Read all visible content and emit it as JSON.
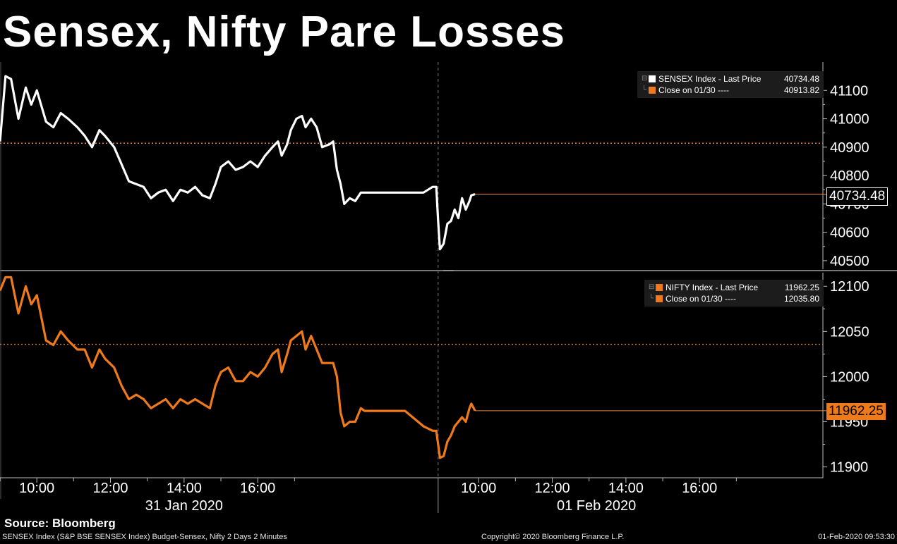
{
  "title": "Sensex, Nifty Pare Losses",
  "source": "Source: Bloomberg",
  "footer": {
    "description": "SENSEX Index (S&P BSE SENSEX Index) Budget-Sensex, Nifty 2 Days 2 Minutes",
    "copyright": "Copyright© 2020 Bloomberg Finance L.P.",
    "timestamp": "01-Feb-2020 09:53:30"
  },
  "colors": {
    "sensex": "#ffffff",
    "nifty": "#f07a1a",
    "close_line": "#e8833a",
    "background": "#000000"
  },
  "chart_data": [
    {
      "type": "line",
      "panel": "top",
      "ylim": [
        40470,
        41200
      ],
      "yticks": [
        41100,
        41000,
        40900,
        40800,
        40700,
        40600,
        40500
      ],
      "legend": {
        "last_label": "SENSEX Index - Last Price",
        "last_value": "40734.48",
        "close_label": "Close on 01/30 ----",
        "close_value": "40913.82"
      },
      "close_ref": 40913.82,
      "last_price": 40734.48,
      "last_price_label": "40734.48",
      "series": [
        {
          "name": "SENSEX Index - Last Price",
          "points": [
            [
              0.0,
              40920
            ],
            [
              0.15,
              41150
            ],
            [
              0.3,
              41140
            ],
            [
              0.5,
              41000
            ],
            [
              0.7,
              41110
            ],
            [
              0.85,
              41050
            ],
            [
              1.0,
              41100
            ],
            [
              1.25,
              40990
            ],
            [
              1.45,
              40970
            ],
            [
              1.65,
              41020
            ],
            [
              1.85,
              41000
            ],
            [
              2.1,
              40970
            ],
            [
              2.3,
              40940
            ],
            [
              2.5,
              40900
            ],
            [
              2.7,
              40960
            ],
            [
              2.85,
              40940
            ],
            [
              3.1,
              40900
            ],
            [
              3.3,
              40840
            ],
            [
              3.5,
              40780
            ],
            [
              3.7,
              40770
            ],
            [
              3.9,
              40760
            ],
            [
              4.1,
              40720
            ],
            [
              4.3,
              40740
            ],
            [
              4.5,
              40750
            ],
            [
              4.7,
              40710
            ],
            [
              4.9,
              40750
            ],
            [
              5.1,
              40740
            ],
            [
              5.3,
              40760
            ],
            [
              5.5,
              40730
            ],
            [
              5.7,
              40720
            ],
            [
              5.85,
              40770
            ],
            [
              6.0,
              40830
            ],
            [
              6.2,
              40850
            ],
            [
              6.4,
              40820
            ],
            [
              6.6,
              40830
            ],
            [
              6.8,
              40850
            ],
            [
              7.0,
              40830
            ],
            [
              7.2,
              40870
            ],
            [
              7.4,
              40900
            ],
            [
              7.55,
              40920
            ],
            [
              7.65,
              40870
            ],
            [
              7.8,
              40910
            ],
            [
              7.9,
              40960
            ],
            [
              8.05,
              41000
            ],
            [
              8.2,
              41010
            ],
            [
              8.3,
              40970
            ],
            [
              8.45,
              41000
            ],
            [
              8.6,
              40970
            ],
            [
              8.75,
              40900
            ],
            [
              8.95,
              40910
            ],
            [
              9.05,
              40920
            ],
            [
              9.15,
              40820
            ],
            [
              9.25,
              40770
            ],
            [
              9.35,
              40700
            ],
            [
              9.5,
              40720
            ],
            [
              9.65,
              40710
            ],
            [
              9.8,
              40740
            ],
            [
              9.9,
              40740
            ],
            [
              11.5,
              40740
            ],
            [
              11.75,
              40760
            ],
            [
              11.85,
              40760
            ],
            [
              11.9,
              40640
            ],
            [
              11.95,
              40540
            ],
            [
              12.05,
              40560
            ],
            [
              12.15,
              40630
            ],
            [
              12.25,
              40640
            ],
            [
              12.35,
              40680
            ],
            [
              12.45,
              40650
            ],
            [
              12.55,
              40720
            ],
            [
              12.65,
              40680
            ],
            [
              12.75,
              40710
            ],
            [
              12.8,
              40730
            ],
            [
              12.9,
              40734.48
            ]
          ]
        }
      ]
    },
    {
      "type": "line",
      "panel": "bottom",
      "ylim": [
        11888,
        12115
      ],
      "yticks": [
        12100,
        12050,
        12000,
        11950,
        11900
      ],
      "legend": {
        "last_label": "NIFTY Index - Last Price",
        "last_value": "11962.25",
        "close_label": "Close on 01/30 ----",
        "close_value": "12035.80"
      },
      "close_ref": 12035.8,
      "last_price": 11962.25,
      "last_price_label": "11962.25",
      "series": [
        {
          "name": "NIFTY Index - Last Price",
          "points": [
            [
              0.0,
              12095
            ],
            [
              0.15,
              12110
            ],
            [
              0.3,
              12110
            ],
            [
              0.5,
              12070
            ],
            [
              0.7,
              12100
            ],
            [
              0.85,
              12080
            ],
            [
              1.0,
              12090
            ],
            [
              1.25,
              12040
            ],
            [
              1.45,
              12035
            ],
            [
              1.65,
              12050
            ],
            [
              1.85,
              12040
            ],
            [
              2.1,
              12030
            ],
            [
              2.3,
              12030
            ],
            [
              2.5,
              12010
            ],
            [
              2.7,
              12030
            ],
            [
              2.85,
              12020
            ],
            [
              3.1,
              12010
            ],
            [
              3.3,
              11990
            ],
            [
              3.5,
              11975
            ],
            [
              3.7,
              11980
            ],
            [
              3.9,
              11975
            ],
            [
              4.1,
              11965
            ],
            [
              4.3,
              11970
            ],
            [
              4.5,
              11975
            ],
            [
              4.7,
              11965
            ],
            [
              4.9,
              11975
            ],
            [
              5.1,
              11970
            ],
            [
              5.3,
              11975
            ],
            [
              5.5,
              11970
            ],
            [
              5.7,
              11965
            ],
            [
              5.85,
              11990
            ],
            [
              6.0,
              12005
            ],
            [
              6.2,
              12010
            ],
            [
              6.4,
              11995
            ],
            [
              6.6,
              11995
            ],
            [
              6.8,
              12005
            ],
            [
              7.0,
              12000
            ],
            [
              7.2,
              12010
            ],
            [
              7.4,
              12025
            ],
            [
              7.55,
              12030
            ],
            [
              7.65,
              12005
            ],
            [
              7.8,
              12025
            ],
            [
              7.9,
              12040
            ],
            [
              8.05,
              12045
            ],
            [
              8.2,
              12050
            ],
            [
              8.3,
              12030
            ],
            [
              8.45,
              12045
            ],
            [
              8.6,
              12030
            ],
            [
              8.75,
              12015
            ],
            [
              8.95,
              12015
            ],
            [
              9.05,
              12015
            ],
            [
              9.15,
              12000
            ],
            [
              9.25,
              11960
            ],
            [
              9.35,
              11945
            ],
            [
              9.5,
              11950
            ],
            [
              9.65,
              11950
            ],
            [
              9.8,
              11965
            ],
            [
              9.9,
              11962
            ],
            [
              11.0,
              11962
            ],
            [
              11.5,
              11945
            ],
            [
              11.75,
              11940
            ],
            [
              11.85,
              11940
            ],
            [
              11.9,
              11925
            ],
            [
              11.95,
              11910
            ],
            [
              12.05,
              11912
            ],
            [
              12.15,
              11928
            ],
            [
              12.25,
              11935
            ],
            [
              12.35,
              11945
            ],
            [
              12.45,
              11950
            ],
            [
              12.55,
              11955
            ],
            [
              12.65,
              11950
            ],
            [
              12.75,
              11965
            ],
            [
              12.8,
              11970
            ],
            [
              12.9,
              11962.25
            ]
          ]
        }
      ]
    }
  ],
  "xaxis": {
    "ticks": [
      {
        "pos": 1,
        "label": "10:00"
      },
      {
        "pos": 3,
        "label": "12:00"
      },
      {
        "pos": 5,
        "label": "14:00"
      },
      {
        "pos": 7,
        "label": "16:00"
      },
      {
        "pos": 13,
        "label": "10:00"
      },
      {
        "pos": 15,
        "label": "12:00"
      },
      {
        "pos": 17,
        "label": "14:00"
      },
      {
        "pos": 19,
        "label": "16:00"
      }
    ],
    "minor_ticks": [
      0,
      2,
      4,
      6,
      8,
      14,
      16,
      18,
      20
    ],
    "day_divider": 11.9,
    "days": [
      {
        "pos": 5,
        "label": "31 Jan 2020"
      },
      {
        "pos": 16.2,
        "label": "01 Feb 2020"
      }
    ],
    "range": [
      0,
      22.35
    ]
  }
}
